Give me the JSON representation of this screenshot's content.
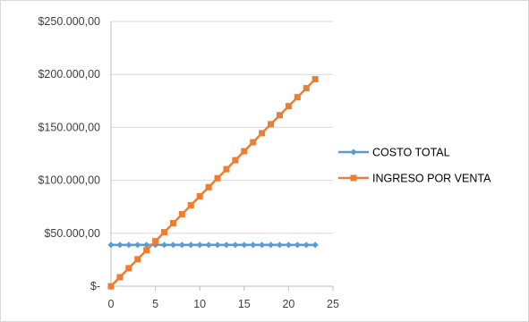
{
  "chart_data": {
    "type": "line",
    "title": "",
    "xlabel": "",
    "ylabel": "",
    "xlim": [
      0,
      25
    ],
    "ylim": [
      0,
      250000
    ],
    "x_ticks": [
      0,
      5,
      10,
      15,
      20,
      25
    ],
    "x_tick_labels": [
      "0",
      "5",
      "10",
      "15",
      "20",
      "25"
    ],
    "y_ticks": [
      0,
      50000,
      100000,
      150000,
      200000,
      250000
    ],
    "y_tick_labels": [
      "$-",
      "$50.000,00",
      "$100.000,00",
      "$150.000,00",
      "$200.000,00",
      "$250.000,00"
    ],
    "grid": "horizontal",
    "legend_position": "right",
    "x": [
      0,
      1,
      2,
      3,
      4,
      5,
      6,
      7,
      8,
      9,
      10,
      11,
      12,
      13,
      14,
      15,
      16,
      17,
      18,
      19,
      20,
      21,
      22,
      23
    ],
    "series": [
      {
        "name": "COSTO TOTAL",
        "color": "#5B9BD5",
        "marker": "diamond",
        "values": [
          39000,
          39000,
          39000,
          39000,
          39000,
          39000,
          39000,
          39000,
          39000,
          39000,
          39000,
          39000,
          39000,
          39000,
          39000,
          39000,
          39000,
          39000,
          39000,
          39000,
          39000,
          39000,
          39000,
          39000
        ]
      },
      {
        "name": "INGRESO POR VENTA",
        "color": "#ED7D31",
        "marker": "square",
        "values": [
          0,
          8500,
          17000,
          25500,
          34000,
          42500,
          51000,
          59500,
          68000,
          76500,
          85000,
          93500,
          102000,
          110500,
          119000,
          127500,
          136000,
          144500,
          153000,
          161500,
          170000,
          178500,
          187000,
          195500
        ]
      }
    ]
  },
  "colors": {
    "gridline": "#d9d9d9",
    "axis": "#bfbfbf",
    "border": "#d9d9d9"
  }
}
